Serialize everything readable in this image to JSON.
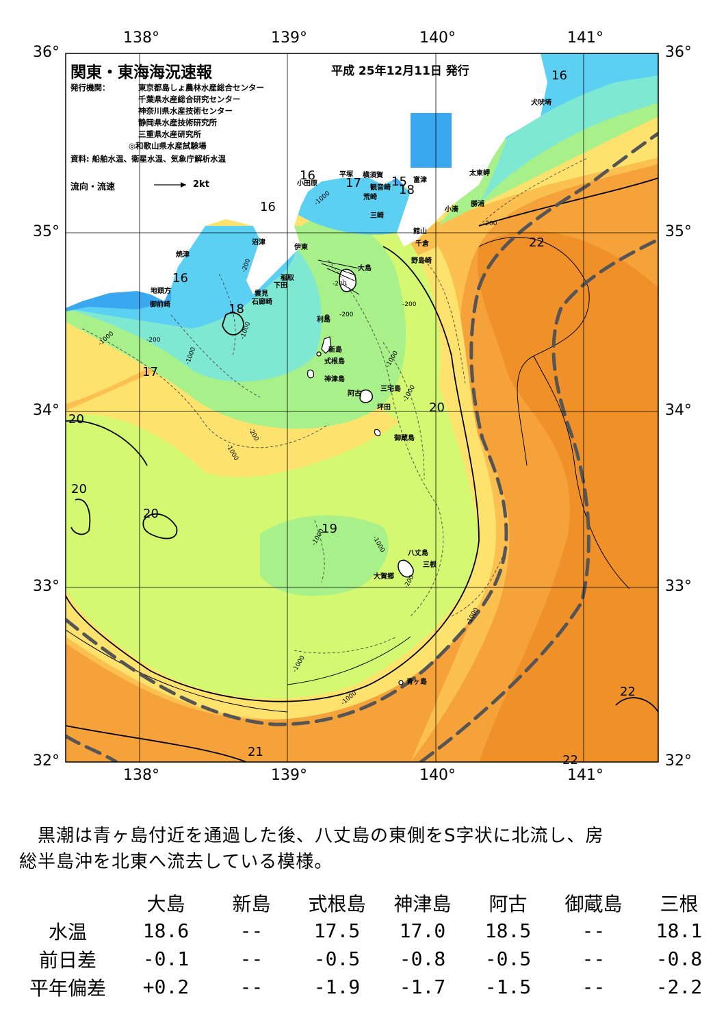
{
  "header": {
    "title": "関東・東海海況速報",
    "issue_date": "平成 25年12月11日 発行",
    "issuer_label": "発行機関：",
    "issuers": [
      "東京都島しょ農林水産総合センター",
      "千葉県水産総合研究センター",
      "神奈川県水産技術センター",
      "静岡県水産技術研究所",
      "三重県水産研究所",
      "◎和歌山県水産試験場"
    ],
    "sources": "資料: 船舶水温、衛星水温、気象庁解析水温",
    "flow_legend": "流向・流速",
    "flow_scale": "2kt"
  },
  "axes": {
    "lon_top": [
      "138°",
      "139°",
      "140°",
      "141°"
    ],
    "lon_bottom": [
      "138°",
      "139°",
      "140°",
      "141°"
    ],
    "lat_left": [
      "36°",
      "35°",
      "34°",
      "33°",
      "32°"
    ],
    "lat_right": [
      "36°",
      "35°",
      "34°",
      "33°",
      "32°"
    ]
  },
  "places": [
    "犬吠埼",
    "太東岬",
    "勝浦",
    "小湊",
    "富津",
    "観音崎",
    "横須賀",
    "平塚",
    "小田原",
    "荒崎",
    "三崎",
    "館山",
    "千倉",
    "野島崎",
    "大島",
    "伊東",
    "沼津",
    "焼津",
    "稲取",
    "下田",
    "雲見",
    "石廊崎",
    "地頭方",
    "御前崎",
    "利島",
    "新島",
    "式根島",
    "神津島",
    "三宅島",
    "阿古",
    "坪田",
    "御蔵島",
    "八丈島",
    "三根",
    "大賀郷",
    "青ヶ島"
  ],
  "isotherm_labels": [
    "16",
    "16",
    "16",
    "17",
    "15",
    "18",
    "16",
    "18",
    "17",
    "20",
    "20",
    "20",
    "20",
    "19",
    "22",
    "22",
    "22",
    "21"
  ],
  "depth_labels": [
    "-1000",
    "-200",
    "-1000",
    "-200",
    "-1000",
    "-200",
    "-1000",
    "-200",
    "-1000",
    "-200",
    "-200",
    "-1000",
    "-1000",
    "-1000",
    "-1000",
    "-200",
    "-1000",
    "-1000",
    "-200",
    "-1000"
  ],
  "summary": [
    "　黒潮は青ヶ島付近を通過した後、八丈島の東側をS字状に北流し、房",
    "総半島沖を北東へ流去している模様。"
  ],
  "table": {
    "columns": [
      "大島",
      "新島",
      "式根島",
      "神津島",
      "阿古",
      "御蔵島",
      "三根"
    ],
    "rows": [
      {
        "label": "水温",
        "values": [
          "18.6",
          "--",
          "17.5",
          "17.0",
          "18.5",
          "--",
          "18.1"
        ]
      },
      {
        "label": "前日差",
        "values": [
          "-0.1",
          "--",
          "-0.5",
          "-0.8",
          "-0.5",
          "--",
          "-0.8"
        ]
      },
      {
        "label": "平年偏差",
        "values": [
          "+0.2",
          "--",
          "-1.9",
          "-1.7",
          "-1.5",
          "--",
          "-2.2"
        ]
      }
    ]
  },
  "colors": {
    "temp_15": "#3aa8f0",
    "temp_16": "#5cd0f2",
    "temp_17": "#7ee8d2",
    "temp_18": "#a8f08a",
    "temp_19": "#d4f872",
    "temp_20": "#fde36e",
    "temp_21": "#fbc04f",
    "temp_22": "#f5a23a",
    "temp_23": "#ef9028",
    "land": "#ffffff",
    "kuroshio_axis": "#555555"
  }
}
